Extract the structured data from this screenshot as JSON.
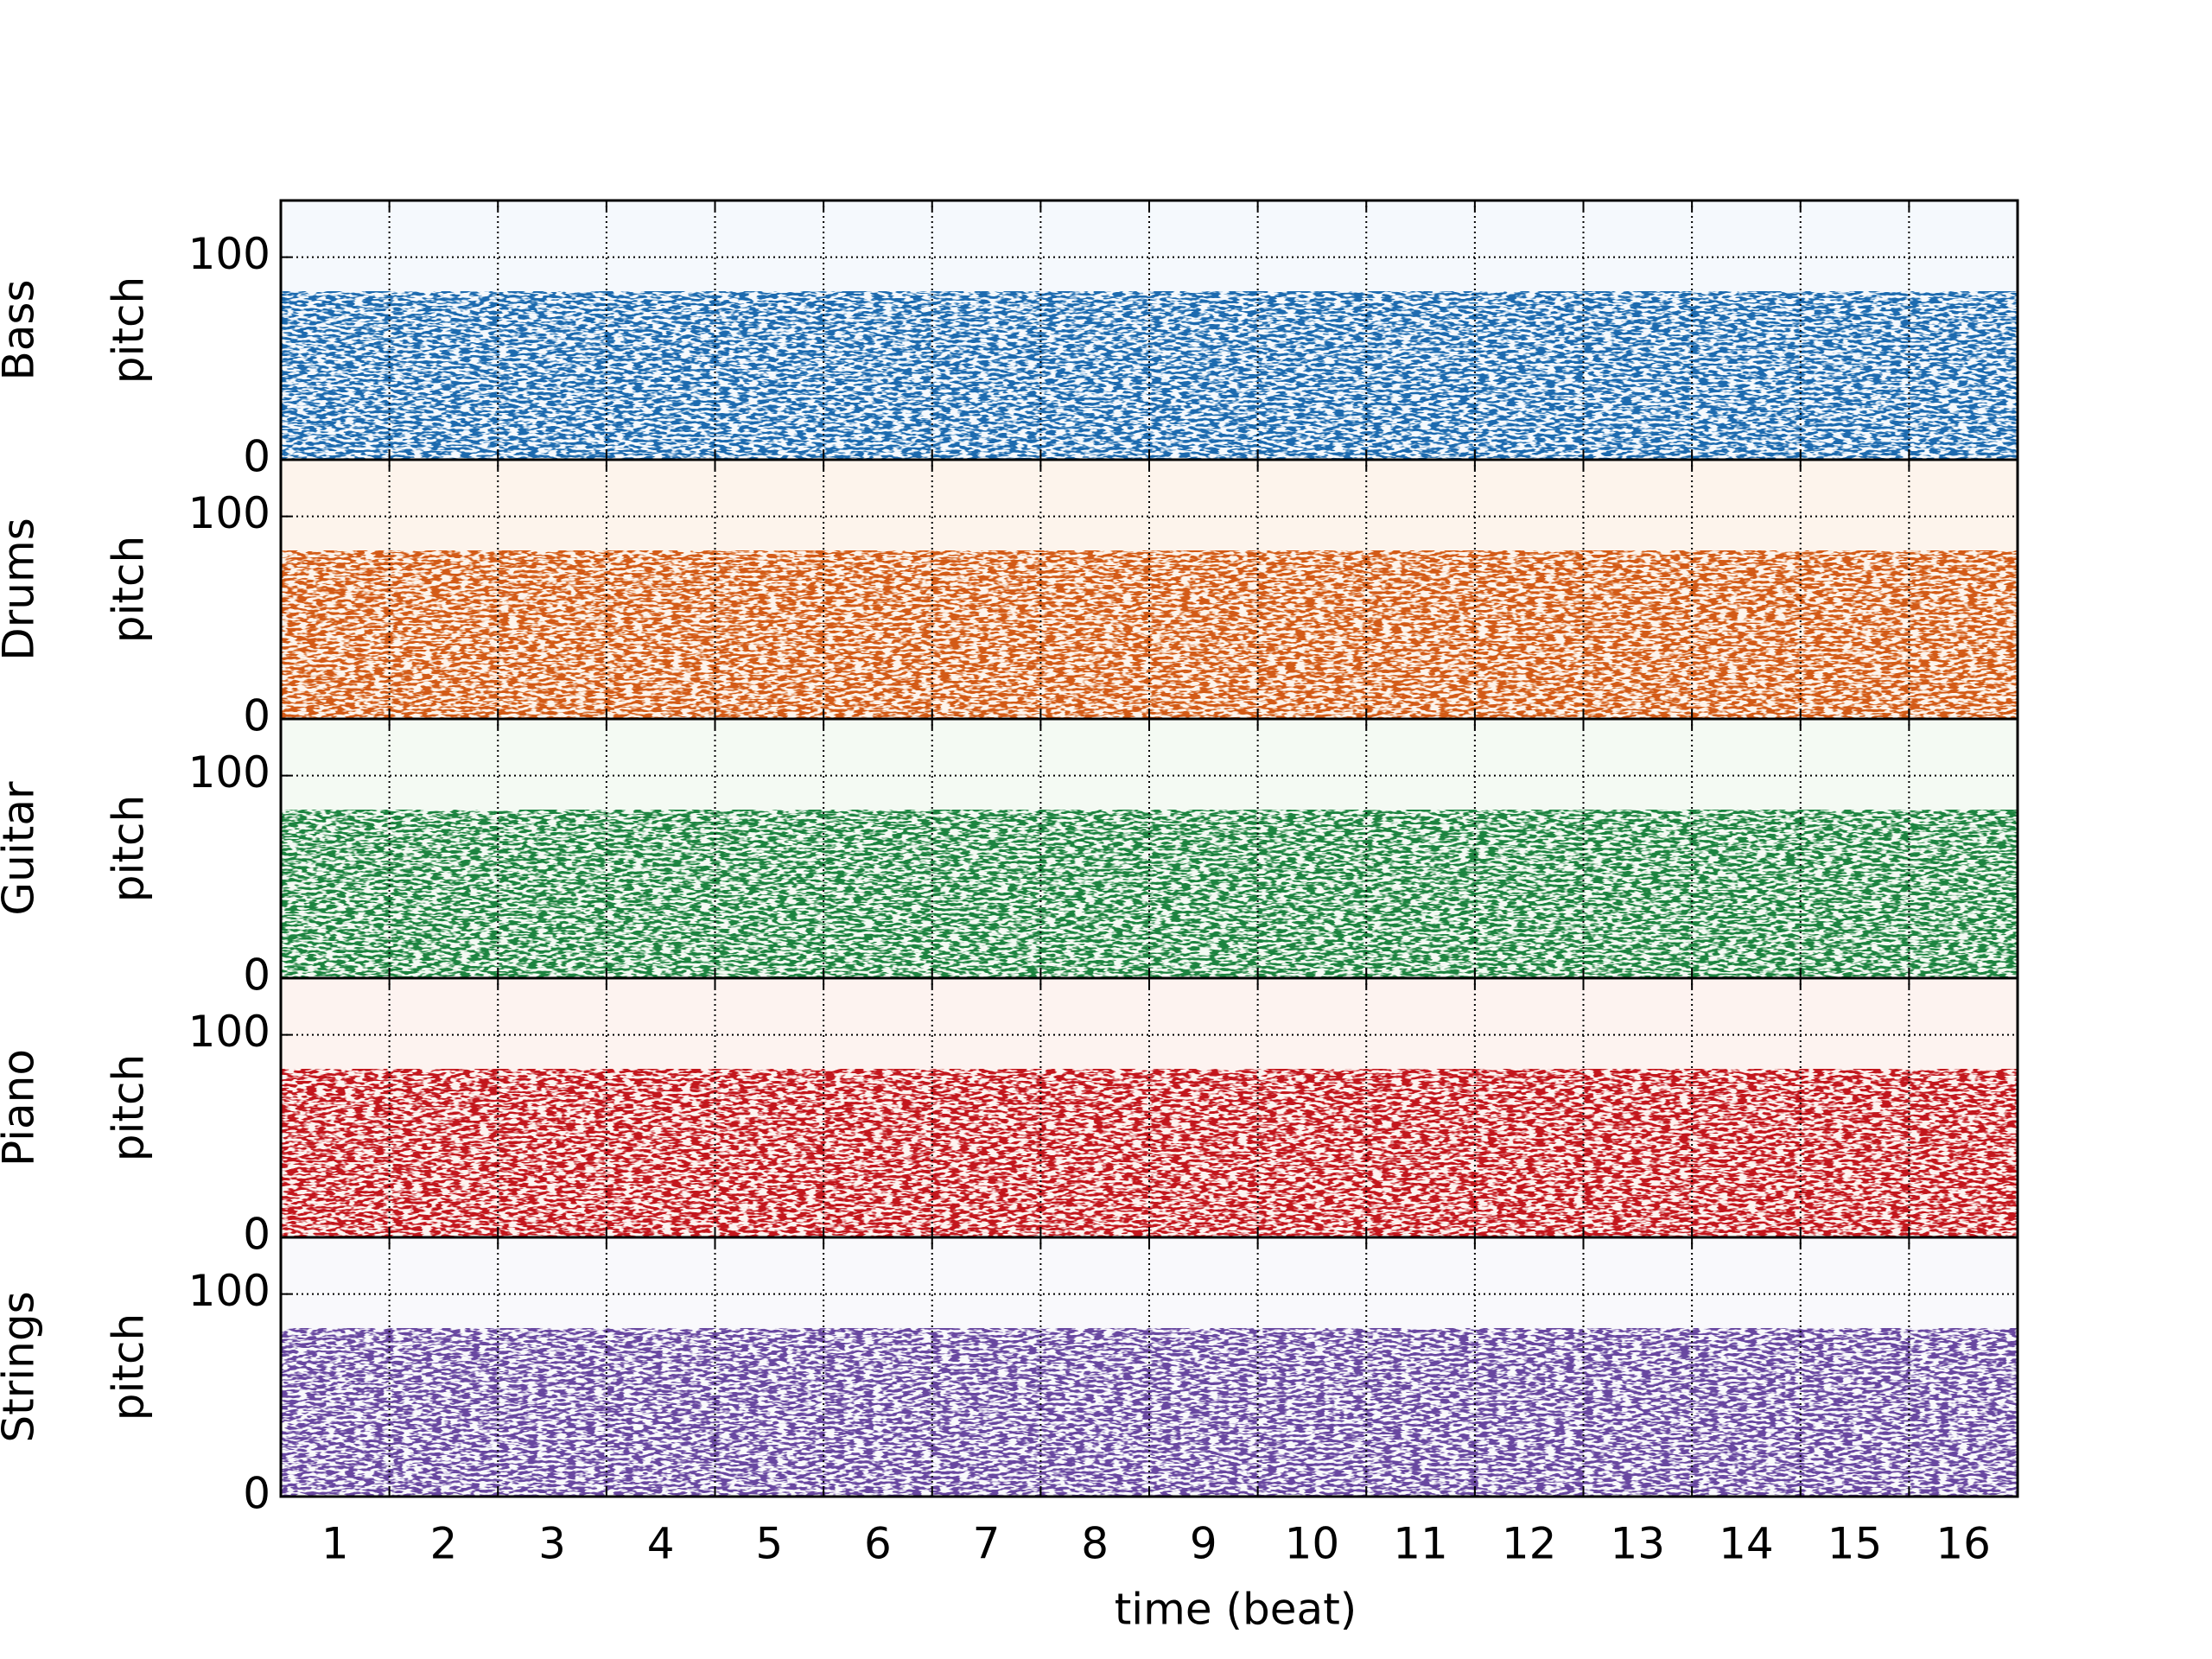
{
  "chart_data": {
    "type": "pianoroll",
    "xlabel": "time (beat)",
    "ylabel": "pitch",
    "xlim": [
      0.5,
      16.5
    ],
    "xticks": [
      1,
      2,
      3,
      4,
      5,
      6,
      7,
      8,
      9,
      10,
      11,
      12,
      13,
      14,
      15,
      16
    ],
    "ylim": [
      0,
      128
    ],
    "yticks": [
      0,
      100
    ],
    "grid": true,
    "series": [
      {
        "name": "Bass",
        "color": "#1a6aaf",
        "background": "#f5f9fd",
        "pitch_range": [
          0,
          83
        ]
      },
      {
        "name": "Drums",
        "color": "#d35a12",
        "background": "#fdf4ec",
        "pitch_range": [
          0,
          83
        ]
      },
      {
        "name": "Guitar",
        "color": "#1f8440",
        "background": "#f4faf3",
        "pitch_range": [
          0,
          83
        ]
      },
      {
        "name": "Piano",
        "color": "#c3151c",
        "background": "#fdf3f0",
        "pitch_range": [
          0,
          83
        ]
      },
      {
        "name": "Strings",
        "color": "#6747a0",
        "background": "#f9f9fc",
        "pitch_range": [
          0,
          83
        ]
      }
    ]
  }
}
